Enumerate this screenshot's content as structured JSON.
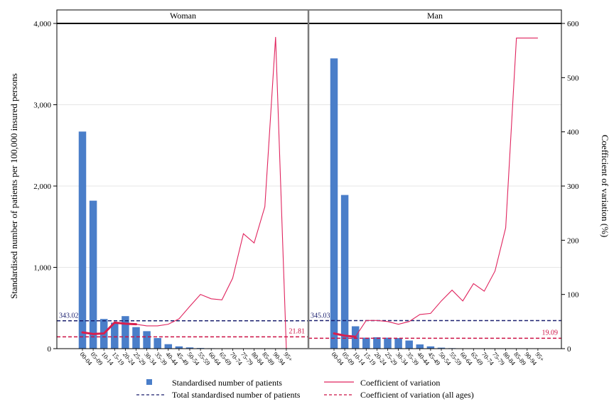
{
  "chart_data": {
    "type": "bar",
    "panels": [
      {
        "title": "Woman",
        "categories": [
          "00-04",
          "05-09",
          "10-14",
          "15-19",
          "20-24",
          "25-29",
          "30-34",
          "35-39",
          "40-44",
          "45-49",
          "50-54",
          "55-59",
          "60-64",
          "65-69",
          "70-74",
          "75-79",
          "80-84",
          "85-89",
          "90-94",
          "95+"
        ],
        "patients": [
          2670,
          1820,
          365,
          320,
          400,
          265,
          215,
          130,
          55,
          28,
          15,
          8,
          5,
          4,
          3,
          2,
          2,
          1,
          0,
          0
        ],
        "cv": [
          30,
          27,
          28,
          48,
          46,
          45,
          42,
          42,
          45,
          55,
          78,
          100,
          92,
          90,
          130,
          212,
          195,
          262,
          575,
          0
        ],
        "cv_highlight_range": [
          0,
          5
        ],
        "total_patients": 343.02,
        "total_patients_label": "343.02",
        "cv_all_ages": 21.81,
        "cv_all_ages_label": "21.81"
      },
      {
        "title": "Man",
        "categories": [
          "00-04",
          "05-09",
          "10-14",
          "15-19",
          "20-24",
          "25-29",
          "30-34",
          "35-39",
          "40-44",
          "45-49",
          "50-54",
          "55-59",
          "60-64",
          "65-69",
          "70-74",
          "75-79",
          "80-84",
          "85-89",
          "90-94",
          "95+"
        ],
        "patients": [
          3570,
          1890,
          275,
          135,
          140,
          135,
          130,
          100,
          52,
          28,
          12,
          6,
          4,
          3,
          2,
          2,
          1,
          1,
          1,
          0
        ],
        "cv": [
          28,
          24,
          22,
          52,
          52,
          50,
          45,
          50,
          63,
          65,
          88,
          108,
          88,
          120,
          106,
          143,
          223,
          573,
          573,
          573
        ],
        "cv_highlight_range": [
          0,
          2
        ],
        "total_patients": 345.03,
        "total_patients_label": "345.03",
        "cv_all_ages": 19.09,
        "cv_all_ages_label": "19.09"
      }
    ],
    "ylabel": "Standardised number of patients per 100,000 insured persons",
    "y2label": "Coefficient of variation (%)",
    "ylim": [
      0,
      4000
    ],
    "y2lim": [
      0,
      600
    ],
    "yticks": [
      "0",
      "1,000",
      "2,000",
      "3,000",
      "4,000"
    ],
    "y2ticks": [
      "0",
      "100",
      "200",
      "300",
      "400",
      "500",
      "600"
    ],
    "legend": {
      "placement": "bottom",
      "items": [
        {
          "label": "Standardised number of patients",
          "kind": "bar"
        },
        {
          "label": "Coefficient of variation",
          "kind": "line"
        },
        {
          "label": "Total standardised number of patients",
          "kind": "dash-navy"
        },
        {
          "label": "Coefficient of variation (all ages)",
          "kind": "dash-red"
        }
      ]
    },
    "colors": {
      "bar": "#4a7ec9",
      "cv_line": "#e0245e",
      "cv_highlight": "#d81e4e",
      "total_line": "#1a1f6e",
      "cv_all_line": "#cc1245",
      "frame": "#000000",
      "divider": "#7a7a7a",
      "grid": "#e6e6e6"
    },
    "grid": true
  }
}
